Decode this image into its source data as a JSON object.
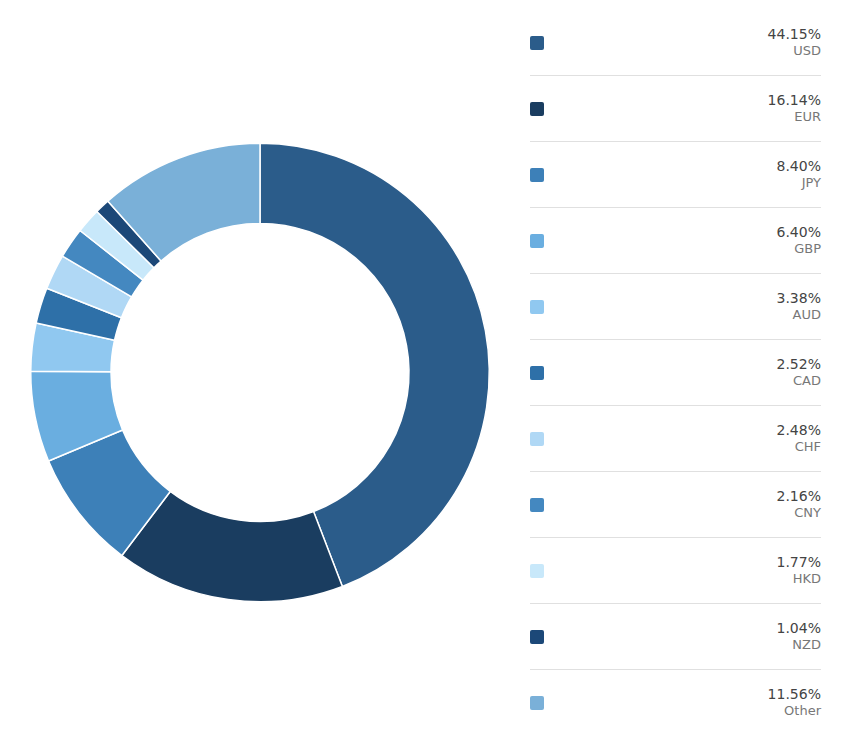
{
  "chart_data": {
    "type": "donut",
    "categories": [
      "USD",
      "EUR",
      "JPY",
      "GBP",
      "AUD",
      "CAD",
      "CHF",
      "CNY",
      "HKD",
      "NZD",
      "Other"
    ],
    "values": [
      44.15,
      16.14,
      8.4,
      6.4,
      3.38,
      2.52,
      2.48,
      2.16,
      1.77,
      1.04,
      11.56
    ],
    "value_labels": [
      "44.15%",
      "16.14%",
      "8.40%",
      "6.40%",
      "3.38%",
      "2.52%",
      "2.48%",
      "2.16%",
      "1.77%",
      "1.04%",
      "11.56%"
    ],
    "colors": [
      "#2b5c8a",
      "#1a3d60",
      "#3d80b8",
      "#6aaee0",
      "#90c8f0",
      "#2e70a8",
      "#b0d8f5",
      "#4488c0",
      "#c8e8fa",
      "#1c4878",
      "#7ab0d8"
    ],
    "legend": "right"
  }
}
